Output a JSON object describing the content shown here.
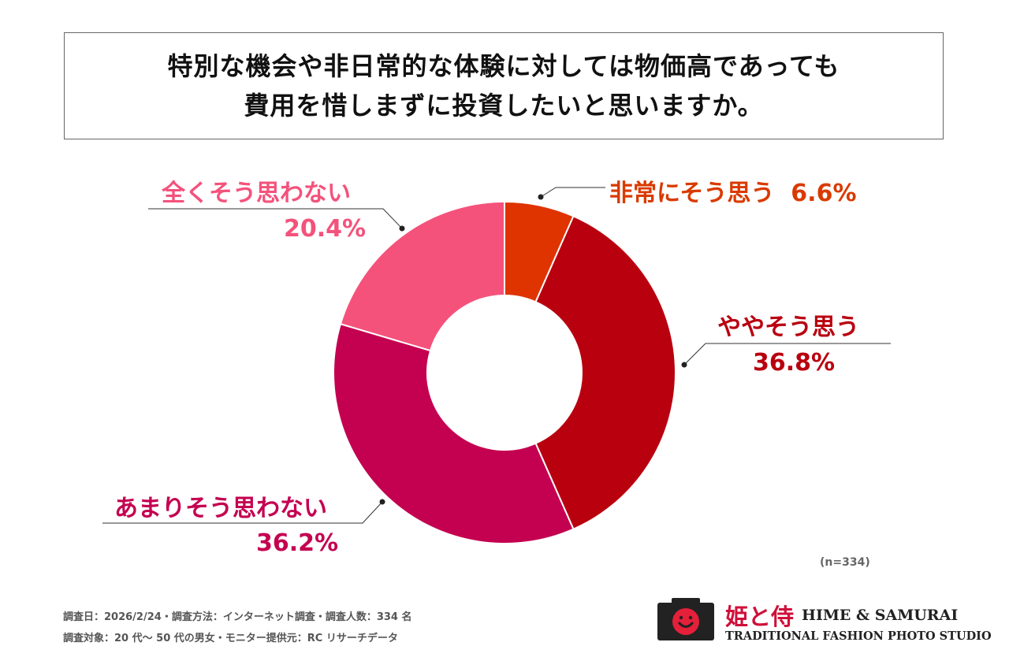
{
  "title": {
    "line1": "特別な機会や非日常的な体験に対しては物価高であっても",
    "line2": "費用を惜しまずに投資したいと思いますか。"
  },
  "chart_data": {
    "type": "pie",
    "donut": true,
    "start": "top, clockwise",
    "categories": [
      "非常にそう思う",
      "ややそう思う",
      "あまりそう思わない",
      "全くそう思わない"
    ],
    "values": [
      6.6,
      36.8,
      36.2,
      20.4
    ],
    "value_labels": [
      "6.6%",
      "36.8%",
      "36.2%",
      "20.4%"
    ],
    "colors": [
      "#df3300",
      "#b9000f",
      "#c40050",
      "#f4527b"
    ],
    "label_colors": [
      "#d93a00",
      "#b9000f",
      "#c40050",
      "#f4527b"
    ]
  },
  "sample_note": "(n=334)",
  "footer": {
    "line1": "調査日：2026/2/24・調査方法：インターネット調査・調査人数：334 名",
    "line2": "調査対象：20 代〜 50 代の男女・モニター提供元：RC リサーチデータ"
  },
  "logo": {
    "kanji": "姫と侍",
    "name": "HIME & SAMURAI",
    "tagline": "TRADITIONAL FASHION PHOTO STUDIO"
  }
}
